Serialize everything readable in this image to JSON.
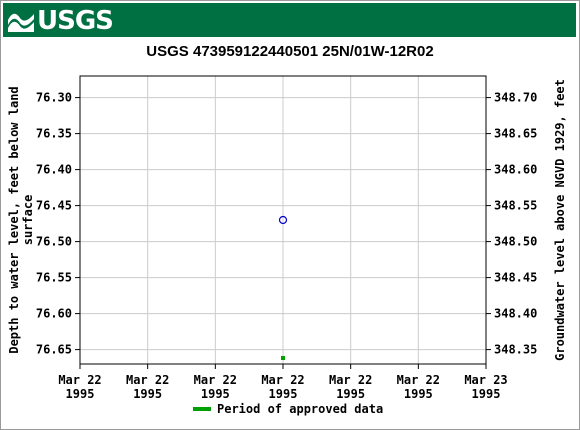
{
  "header": {
    "logo_text": "USGS",
    "banner_color": "#006f41",
    "logo_icon": "usgs-wave-icon"
  },
  "chart_data": {
    "type": "scatter",
    "title": "USGS 473959122440501 25N/01W-12R02",
    "ylabel_left": "Depth to water level, feet below land surface",
    "ylabel_right": "Groundwater level above NGVD 1929, feet",
    "yticks_left": [
      "76.30",
      "76.35",
      "76.40",
      "76.45",
      "76.50",
      "76.55",
      "76.60",
      "76.65"
    ],
    "yticks_right": [
      "348.70",
      "348.65",
      "348.60",
      "348.55",
      "348.50",
      "348.45",
      "348.40",
      "348.35"
    ],
    "ylim_left": [
      76.27,
      76.67
    ],
    "xticks": [
      [
        "Mar 22",
        "1995"
      ],
      [
        "Mar 22",
        "1995"
      ],
      [
        "Mar 22",
        "1995"
      ],
      [
        "Mar 22",
        "1995"
      ],
      [
        "Mar 22",
        "1995"
      ],
      [
        "Mar 22",
        "1995"
      ],
      [
        "Mar 23",
        "1995"
      ]
    ],
    "xlim_days": [
      0,
      1
    ],
    "grid": true,
    "series": [
      {
        "kind": "point",
        "marker": "open-circle",
        "color": "#0000cc",
        "x_day": 0.5,
        "y": 76.47
      }
    ],
    "approved_period": {
      "color": "#00a000",
      "x_day": 0.5
    },
    "legend": {
      "label": "Period of approved data",
      "placement": "bottom"
    }
  }
}
